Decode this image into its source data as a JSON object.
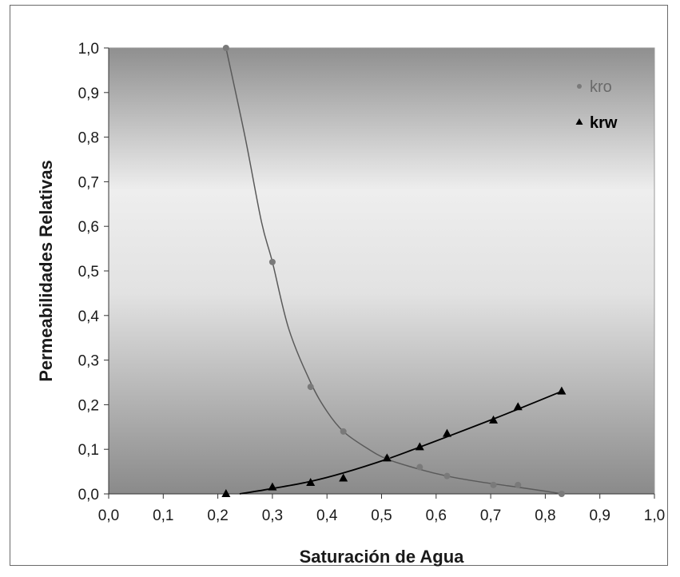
{
  "chart_data": {
    "type": "scatter",
    "xlabel": "Saturación de Agua",
    "ylabel": "Permeabilidades Relativas",
    "xlim": [
      0,
      1
    ],
    "ylim": [
      0,
      1
    ],
    "x_ticks": [
      "0,0",
      "0,1",
      "0,2",
      "0,3",
      "0,4",
      "0,5",
      "0,6",
      "0,7",
      "0,8",
      "0,9",
      "1,0"
    ],
    "y_ticks": [
      "0,0",
      "0,1",
      "0,2",
      "0,3",
      "0,4",
      "0,5",
      "0,6",
      "0,7",
      "0,8",
      "0,9",
      "1,0"
    ],
    "grid": false,
    "legend_position": "top-right",
    "series": [
      {
        "name": "kro",
        "marker": "circle",
        "color": "#7a7a7a",
        "points": [
          [
            0.215,
            1.0
          ],
          [
            0.3,
            0.52
          ],
          [
            0.37,
            0.24
          ],
          [
            0.43,
            0.14
          ],
          [
            0.51,
            0.08
          ],
          [
            0.57,
            0.06
          ],
          [
            0.62,
            0.04
          ],
          [
            0.705,
            0.02
          ],
          [
            0.75,
            0.02
          ],
          [
            0.83,
            0.0
          ]
        ],
        "fit": [
          [
            0.215,
            1.0
          ],
          [
            0.25,
            0.8
          ],
          [
            0.28,
            0.61
          ],
          [
            0.3,
            0.52
          ],
          [
            0.33,
            0.37
          ],
          [
            0.37,
            0.25
          ],
          [
            0.4,
            0.185
          ],
          [
            0.43,
            0.14
          ],
          [
            0.47,
            0.105
          ],
          [
            0.51,
            0.078
          ],
          [
            0.57,
            0.055
          ],
          [
            0.62,
            0.04
          ],
          [
            0.68,
            0.027
          ],
          [
            0.75,
            0.015
          ],
          [
            0.8,
            0.006
          ],
          [
            0.83,
            0.0
          ]
        ]
      },
      {
        "name": "krw",
        "marker": "triangle",
        "color": "#000000",
        "points": [
          [
            0.215,
            0.0
          ],
          [
            0.3,
            0.015
          ],
          [
            0.37,
            0.025
          ],
          [
            0.43,
            0.035
          ],
          [
            0.51,
            0.08
          ],
          [
            0.57,
            0.105
          ],
          [
            0.62,
            0.135
          ],
          [
            0.705,
            0.165
          ],
          [
            0.75,
            0.195
          ],
          [
            0.83,
            0.23
          ]
        ],
        "fit": [
          [
            0.24,
            0.0
          ],
          [
            0.3,
            0.012
          ],
          [
            0.37,
            0.028
          ],
          [
            0.43,
            0.047
          ],
          [
            0.51,
            0.078
          ],
          [
            0.57,
            0.105
          ],
          [
            0.62,
            0.128
          ],
          [
            0.705,
            0.168
          ],
          [
            0.75,
            0.19
          ],
          [
            0.83,
            0.23
          ]
        ]
      }
    ]
  }
}
